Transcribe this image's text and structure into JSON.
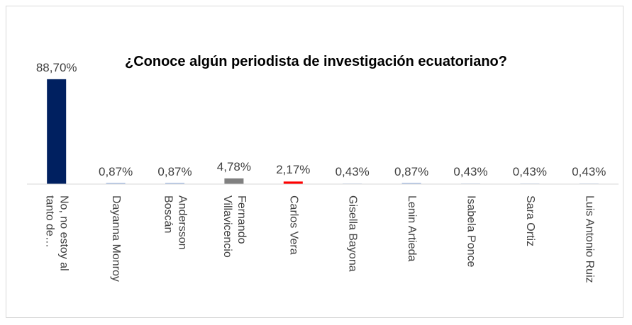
{
  "chart_data": {
    "type": "bar",
    "title": "¿Conoce algún periodista de investigación ecuatoriano?",
    "categories": [
      "No, no estoy al\ntanto de…",
      "Dayanna Monroy",
      "Andersson\nBoscán",
      "Fernando\nVillavicencio",
      "Carlos Vera",
      "Gisella Bayona",
      "Lenin Artieda",
      "Isabela Ponce",
      "Sara Ortiz",
      "Luis Antonio Ruiz"
    ],
    "values": [
      88.7,
      0.87,
      0.87,
      4.78,
      2.17,
      0.43,
      0.87,
      0.43,
      0.43,
      0.43
    ],
    "value_labels": [
      "88,70%",
      "0,87%",
      "0,87%",
      "4,78%",
      "2,17%",
      "0,43%",
      "0,87%",
      "0,43%",
      "0,43%",
      "0,43%"
    ],
    "colors": [
      "#002060",
      "#8faadc",
      "#8faadc",
      "#808080",
      "#ff0000",
      "#8faadc",
      "#8faadc",
      "#8faadc",
      "#8faadc",
      "#8faadc"
    ],
    "ylim": [
      0,
      100
    ]
  }
}
